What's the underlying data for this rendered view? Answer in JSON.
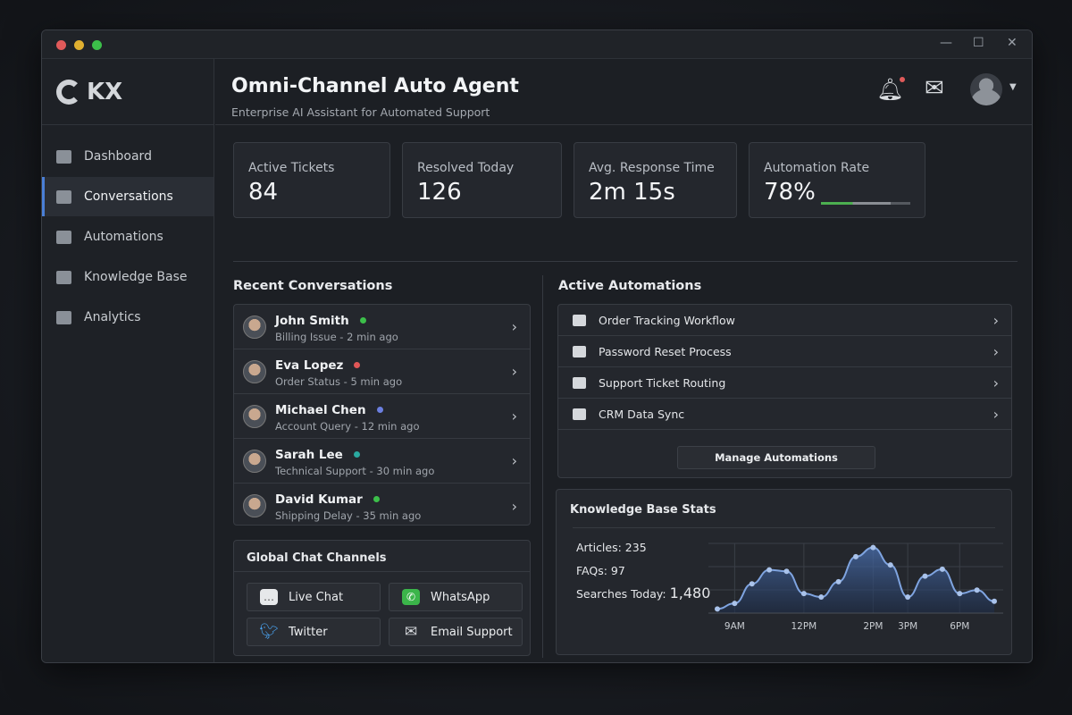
{
  "window": {
    "controls": [
      "minimize",
      "maximize",
      "close"
    ]
  },
  "brand": {
    "logo_text": "KX"
  },
  "sidebar": {
    "items": [
      {
        "label": "Dashboard",
        "icon": "grid-icon",
        "active": false
      },
      {
        "label": "Conversations",
        "icon": "chat-icon",
        "active": true
      },
      {
        "label": "Automations",
        "icon": "monitor-icon",
        "active": false
      },
      {
        "label": "Knowledge Base",
        "icon": "book-icon",
        "active": false
      },
      {
        "label": "Analytics",
        "icon": "bar-chart-icon",
        "active": false
      }
    ]
  },
  "header": {
    "title": "Omni-Channel Auto Agent",
    "subtitle": "Enterprise AI Assistant for Automated Support",
    "notification_badge_color": "#e05a5a"
  },
  "stats": [
    {
      "label": "Active Tickets",
      "value": "84"
    },
    {
      "label": "Resolved Today",
      "value": "126"
    },
    {
      "label": "Avg. Response Time",
      "value": "2m 15s"
    },
    {
      "label": "Automation Rate",
      "value": "78%",
      "progress_percent": 78
    }
  ],
  "recent": {
    "title": "Recent Conversations",
    "items": [
      {
        "name": "John Smith",
        "detail": "Billing Issue - 2 min ago",
        "status_color": "#3cbf4a"
      },
      {
        "name": "Eva Lopez",
        "detail": "Order Status - 5 min ago",
        "status_color": "#e05656"
      },
      {
        "name": "Michael Chen",
        "detail": "Account Query - 12 min ago",
        "status_color": "#6b7fe0"
      },
      {
        "name": "Sarah Lee",
        "detail": "Technical Support - 30 min ago",
        "status_color": "#2aa9a0"
      },
      {
        "name": "David Kumar",
        "detail": "Shipping Delay - 35 min ago",
        "status_color": "#3cbf4a"
      }
    ]
  },
  "channels": {
    "title": "Global Chat Channels",
    "items": [
      {
        "label": "Live Chat",
        "icon": "chat-bubble-icon"
      },
      {
        "label": "WhatsApp",
        "icon": "whatsapp-icon"
      },
      {
        "label": "Twitter",
        "icon": "twitter-icon"
      },
      {
        "label": "Email Support",
        "icon": "envelope-icon"
      }
    ]
  },
  "automations": {
    "title": "Active Automations",
    "items": [
      {
        "label": "Order Tracking Workflow"
      },
      {
        "label": "Password Reset Process"
      },
      {
        "label": "Support Ticket Routing"
      },
      {
        "label": "CRM Data Sync"
      }
    ],
    "manage_label": "Manage Automations"
  },
  "kb": {
    "title": "Knowledge Base Stats",
    "articles": "Articles: 235",
    "faqs": "FAQs: 97",
    "searches_label": "Searches Today:",
    "searches_value": "1,480"
  },
  "chart_data": {
    "type": "area",
    "values": [
      6,
      14,
      42,
      62,
      60,
      28,
      23,
      45,
      81,
      94,
      69,
      23,
      53,
      63,
      28,
      33,
      17
    ],
    "x_ticks": [
      {
        "label": "9AM",
        "index": 1
      },
      {
        "label": "12PM",
        "index": 5
      },
      {
        "label": "2PM",
        "index": 9
      },
      {
        "label": "3PM",
        "index": 11
      },
      {
        "label": "6PM",
        "index": 14
      }
    ],
    "ylim": [
      0,
      100
    ],
    "grid": true,
    "color": "#7fa4e0"
  }
}
